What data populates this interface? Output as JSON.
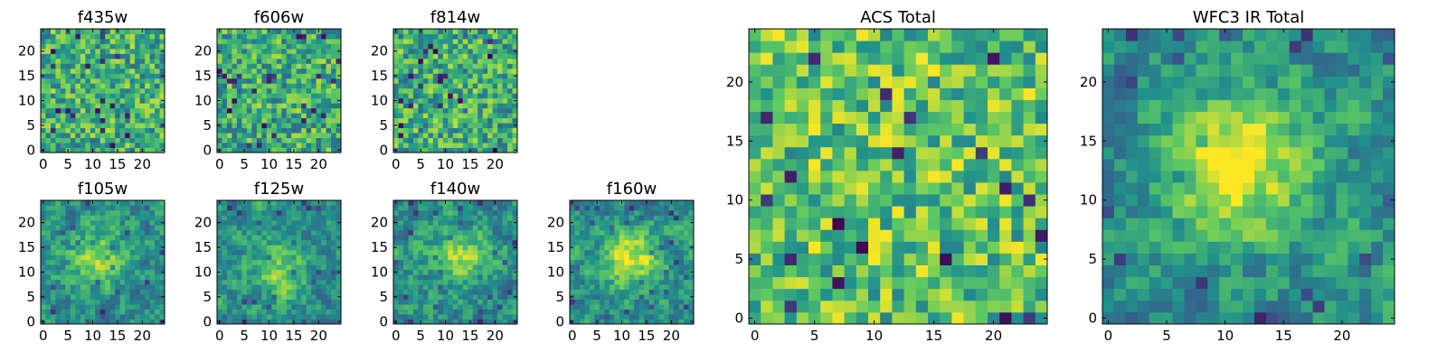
{
  "chart_data": [
    {
      "type": "heatmap",
      "title": "f435w",
      "xticks": [
        "0",
        "5",
        "10",
        "15",
        "20"
      ],
      "yticks": [
        "0",
        "5",
        "10",
        "15",
        "20"
      ],
      "xlim": [
        -0.5,
        24.5
      ],
      "ylim": [
        -0.5,
        24.5
      ],
      "grid_size": 25,
      "pattern": "noise",
      "seed": 11
    },
    {
      "type": "heatmap",
      "title": "f606w",
      "xticks": [
        "0",
        "5",
        "10",
        "15",
        "20"
      ],
      "yticks": [
        "0",
        "5",
        "10",
        "15",
        "20"
      ],
      "xlim": [
        -0.5,
        24.5
      ],
      "ylim": [
        -0.5,
        24.5
      ],
      "grid_size": 25,
      "pattern": "noise",
      "seed": 23
    },
    {
      "type": "heatmap",
      "title": "f814w",
      "xticks": [
        "0",
        "5",
        "10",
        "15",
        "20"
      ],
      "yticks": [
        "0",
        "5",
        "10",
        "15",
        "20"
      ],
      "xlim": [
        -0.5,
        24.5
      ],
      "ylim": [
        -0.5,
        24.5
      ],
      "grid_size": 25,
      "pattern": "noise",
      "seed": 37
    },
    {
      "type": "heatmap",
      "title": "f105w",
      "xticks": [
        "0",
        "5",
        "10",
        "15",
        "20"
      ],
      "yticks": [
        "0",
        "5",
        "10",
        "15",
        "20"
      ],
      "xlim": [
        -0.5,
        24.5
      ],
      "ylim": [
        -0.5,
        24.5
      ],
      "grid_size": 25,
      "pattern": "blob",
      "seed": 41,
      "peak": [
        11,
        13
      ],
      "peak_strength": 0.35
    },
    {
      "type": "heatmap",
      "title": "f125w",
      "xticks": [
        "0",
        "5",
        "10",
        "15",
        "20"
      ],
      "yticks": [
        "0",
        "5",
        "10",
        "15",
        "20"
      ],
      "xlim": [
        -0.5,
        24.5
      ],
      "ylim": [
        -0.5,
        24.5
      ],
      "grid_size": 25,
      "pattern": "blob",
      "seed": 53,
      "peak": [
        12,
        10
      ],
      "peak_strength": 0.3
    },
    {
      "type": "heatmap",
      "title": "f140w",
      "xticks": [
        "0",
        "5",
        "10",
        "15",
        "20"
      ],
      "yticks": [
        "0",
        "5",
        "10",
        "15",
        "20"
      ],
      "xlim": [
        -0.5,
        24.5
      ],
      "ylim": [
        -0.5,
        24.5
      ],
      "grid_size": 25,
      "pattern": "blob",
      "seed": 67,
      "peak": [
        13,
        14
      ],
      "peak_strength": 0.35
    },
    {
      "type": "heatmap",
      "title": "f160w",
      "xticks": [
        "0",
        "5",
        "10",
        "15",
        "20"
      ],
      "yticks": [
        "0",
        "5",
        "10",
        "15",
        "20"
      ],
      "xlim": [
        -0.5,
        24.5
      ],
      "ylim": [
        -0.5,
        24.5
      ],
      "grid_size": 25,
      "pattern": "blob",
      "seed": 71,
      "peak": [
        12,
        13
      ],
      "peak_strength": 0.45
    },
    {
      "type": "heatmap",
      "title": "ACS Total",
      "xticks": [
        "0",
        "5",
        "10",
        "15",
        "20"
      ],
      "yticks": [
        "0",
        "5",
        "10",
        "15",
        "20"
      ],
      "xlim": [
        -0.5,
        24.5
      ],
      "ylim": [
        -0.5,
        24.5
      ],
      "grid_size": 25,
      "pattern": "noise",
      "seed": 83,
      "mean": 0.72
    },
    {
      "type": "heatmap",
      "title": "WFC3 IR Total",
      "xticks": [
        "0",
        "5",
        "10",
        "15",
        "20"
      ],
      "yticks": [
        "0",
        "5",
        "10",
        "15",
        "20"
      ],
      "xlim": [
        -0.5,
        24.5
      ],
      "ylim": [
        -0.5,
        24.5
      ],
      "grid_size": 25,
      "pattern": "blob",
      "seed": 97,
      "peak": [
        11,
        13
      ],
      "peak_strength": 0.55
    }
  ],
  "colormap": [
    "#440154",
    "#3b528b",
    "#21918c",
    "#5ec962",
    "#fde725"
  ]
}
